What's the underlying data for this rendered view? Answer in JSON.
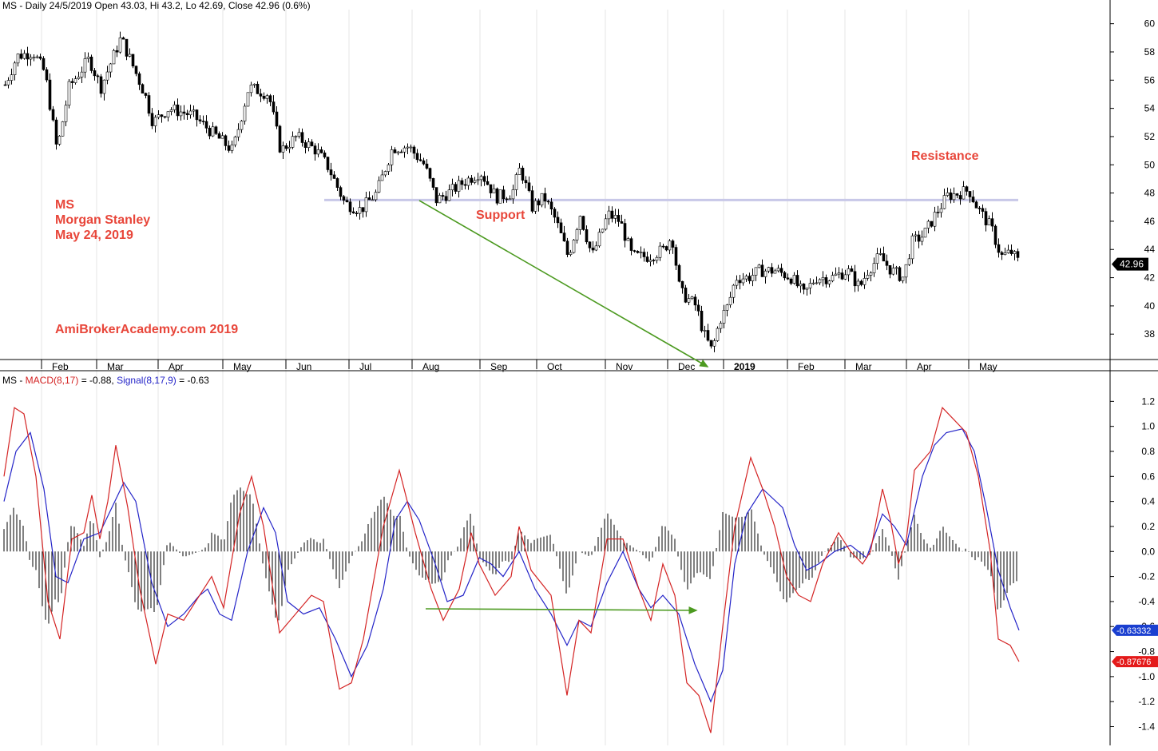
{
  "chart_data": [
    {
      "type": "candlestick",
      "title": "MS - Daily 24/5/2019 Open 43.03, Hi 43.2, Lo 42.69, Close 42.96 (0.6%)",
      "ylim": [
        36.2,
        61
      ],
      "yticks": [
        "38",
        "40",
        "42",
        "44",
        "46",
        "48",
        "50",
        "52",
        "54",
        "56",
        "58",
        "60"
      ],
      "xticks": [
        "Feb",
        "Mar",
        "Apr",
        "May",
        "Jun",
        "Jul",
        "Aug",
        "Sep",
        "Oct",
        "Nov",
        "Dec",
        "2019",
        "Feb",
        "Mar",
        "Apr",
        "May"
      ],
      "last_price_label": "42.96",
      "price_path": [
        [
          0,
          55
        ],
        [
          20,
          57.7
        ],
        [
          40,
          58
        ],
        [
          55,
          56.5
        ],
        [
          70,
          51
        ],
        [
          85,
          55.5
        ],
        [
          110,
          57.5
        ],
        [
          125,
          55.5
        ],
        [
          150,
          59
        ],
        [
          165,
          57
        ],
        [
          180,
          55
        ],
        [
          190,
          53
        ],
        [
          210,
          54
        ],
        [
          240,
          53.5
        ],
        [
          270,
          52
        ],
        [
          290,
          51
        ],
        [
          310,
          55.5
        ],
        [
          335,
          55
        ],
        [
          350,
          51
        ],
        [
          370,
          52
        ],
        [
          395,
          51
        ],
        [
          410,
          49.8
        ],
        [
          430,
          47.3
        ],
        [
          450,
          46.8
        ],
        [
          470,
          48
        ],
        [
          490,
          51.2
        ],
        [
          510,
          51.3
        ],
        [
          530,
          50
        ],
        [
          545,
          47.5
        ],
        [
          560,
          48
        ],
        [
          580,
          48.8
        ],
        [
          600,
          49.5
        ],
        [
          620,
          47.7
        ],
        [
          640,
          48
        ],
        [
          650,
          49.8
        ],
        [
          665,
          47
        ],
        [
          680,
          47.7
        ],
        [
          695,
          46
        ],
        [
          710,
          43.5
        ],
        [
          725,
          46.5
        ],
        [
          740,
          43.5
        ],
        [
          760,
          46.5
        ],
        [
          775,
          46
        ],
        [
          790,
          43.5
        ],
        [
          810,
          43.5
        ],
        [
          830,
          44
        ],
        [
          840,
          45
        ],
        [
          850,
          41
        ],
        [
          860,
          40.5
        ],
        [
          870,
          40
        ],
        [
          880,
          38
        ],
        [
          890,
          36.8
        ],
        [
          900,
          39
        ],
        [
          910,
          40
        ],
        [
          920,
          42
        ],
        [
          935,
          42
        ],
        [
          950,
          42.5
        ],
        [
          970,
          42.5
        ],
        [
          990,
          42
        ],
        [
          1005,
          40.8
        ],
        [
          1020,
          42
        ],
        [
          1040,
          42
        ],
        [
          1060,
          42.5
        ],
        [
          1075,
          41.3
        ],
        [
          1085,
          42.5
        ],
        [
          1100,
          43.5
        ],
        [
          1115,
          42.5
        ],
        [
          1130,
          42
        ],
        [
          1140,
          44.5
        ],
        [
          1155,
          45
        ],
        [
          1170,
          46.5
        ],
        [
          1185,
          47.8
        ],
        [
          1200,
          48
        ],
        [
          1212,
          48.2
        ],
        [
          1222,
          47
        ],
        [
          1240,
          45.5
        ],
        [
          1252,
          43.5
        ],
        [
          1265,
          43.8
        ],
        [
          1276,
          42.96
        ]
      ],
      "ma_line": [
        [
          406,
          47.5
        ],
        [
          1275,
          47.5
        ]
      ]
    },
    {
      "type": "line",
      "title": "MS - MACD(8,17) = -0.88, Signal(8,17,9) = -0.63",
      "legend": [
        "MS - ",
        "MACD(8,17)",
        " = -0.88, ",
        "Signal(8,17,9)",
        " = -0.63"
      ],
      "ylim": [
        -1.55,
        1.33
      ],
      "yticks": [
        "-1.4",
        "-1.2",
        "-1.0",
        "-0.8",
        "-0.6",
        "-0.4",
        "-0.2",
        "0.0",
        "0.2",
        "0.4",
        "0.6",
        "0.8",
        "1.0",
        "1.2"
      ],
      "series": [
        {
          "name": "MACD(8,17)",
          "color": "#d42424",
          "values": [
            [
              5,
              0.6
            ],
            [
              18,
              1.15
            ],
            [
              30,
              1.1
            ],
            [
              45,
              0.6
            ],
            [
              60,
              -0.4
            ],
            [
              75,
              -0.7
            ],
            [
              90,
              0.1
            ],
            [
              105,
              0.15
            ],
            [
              115,
              0.45
            ],
            [
              125,
              0.1
            ],
            [
              135,
              0.4
            ],
            [
              145,
              0.85
            ],
            [
              160,
              0.35
            ],
            [
              175,
              -0.3
            ],
            [
              195,
              -0.9
            ],
            [
              210,
              -0.5
            ],
            [
              230,
              -0.55
            ],
            [
              250,
              -0.35
            ],
            [
              265,
              -0.2
            ],
            [
              280,
              -0.45
            ],
            [
              300,
              0.3
            ],
            [
              315,
              0.6
            ],
            [
              330,
              0.2
            ],
            [
              350,
              -0.65
            ],
            [
              370,
              -0.5
            ],
            [
              390,
              -0.35
            ],
            [
              405,
              -0.4
            ],
            [
              425,
              -1.1
            ],
            [
              440,
              -1.05
            ],
            [
              455,
              -0.7
            ],
            [
              480,
              0.2
            ],
            [
              500,
              0.65
            ],
            [
              520,
              0.15
            ],
            [
              540,
              -0.3
            ],
            [
              555,
              -0.55
            ],
            [
              575,
              -0.3
            ],
            [
              590,
              0.15
            ],
            [
              600,
              -0.1
            ],
            [
              620,
              -0.35
            ],
            [
              640,
              -0.2
            ],
            [
              650,
              0.2
            ],
            [
              665,
              -0.15
            ],
            [
              690,
              -0.35
            ],
            [
              710,
              -1.15
            ],
            [
              725,
              -0.55
            ],
            [
              740,
              -0.65
            ],
            [
              760,
              0.1
            ],
            [
              780,
              0.1
            ],
            [
              800,
              -0.3
            ],
            [
              815,
              -0.55
            ],
            [
              830,
              -0.1
            ],
            [
              845,
              -0.35
            ],
            [
              860,
              -1.05
            ],
            [
              875,
              -1.15
            ],
            [
              890,
              -1.45
            ],
            [
              905,
              -0.6
            ],
            [
              920,
              0.2
            ],
            [
              940,
              0.75
            ],
            [
              955,
              0.5
            ],
            [
              970,
              0.2
            ],
            [
              985,
              -0.2
            ],
            [
              1000,
              -0.35
            ],
            [
              1015,
              -0.4
            ],
            [
              1030,
              -0.1
            ],
            [
              1050,
              0.15
            ],
            [
              1065,
              0.0
            ],
            [
              1080,
              -0.1
            ],
            [
              1090,
              0.0
            ],
            [
              1105,
              0.5
            ],
            [
              1115,
              0.25
            ],
            [
              1125,
              -0.1
            ],
            [
              1135,
              0.1
            ],
            [
              1145,
              0.65
            ],
            [
              1165,
              0.8
            ],
            [
              1180,
              1.15
            ],
            [
              1195,
              1.05
            ],
            [
              1210,
              0.95
            ],
            [
              1225,
              0.6
            ],
            [
              1240,
              0.0
            ],
            [
              1250,
              -0.7
            ],
            [
              1265,
              -0.75
            ],
            [
              1276,
              -0.88
            ]
          ]
        },
        {
          "name": "Signal(8,17,9)",
          "color": "#2424c8",
          "values": [
            [
              5,
              0.4
            ],
            [
              20,
              0.8
            ],
            [
              38,
              0.95
            ],
            [
              55,
              0.5
            ],
            [
              70,
              -0.2
            ],
            [
              85,
              -0.25
            ],
            [
              105,
              0.1
            ],
            [
              125,
              0.15
            ],
            [
              140,
              0.35
            ],
            [
              155,
              0.55
            ],
            [
              170,
              0.4
            ],
            [
              190,
              -0.25
            ],
            [
              210,
              -0.6
            ],
            [
              230,
              -0.5
            ],
            [
              250,
              -0.35
            ],
            [
              260,
              -0.3
            ],
            [
              275,
              -0.5
            ],
            [
              290,
              -0.55
            ],
            [
              310,
              0.0
            ],
            [
              330,
              0.35
            ],
            [
              345,
              0.15
            ],
            [
              360,
              -0.4
            ],
            [
              380,
              -0.5
            ],
            [
              400,
              -0.45
            ],
            [
              420,
              -0.7
            ],
            [
              440,
              -1.0
            ],
            [
              460,
              -0.75
            ],
            [
              480,
              -0.3
            ],
            [
              495,
              0.25
            ],
            [
              510,
              0.4
            ],
            [
              525,
              0.25
            ],
            [
              545,
              -0.1
            ],
            [
              560,
              -0.4
            ],
            [
              580,
              -0.35
            ],
            [
              600,
              -0.05
            ],
            [
              615,
              -0.1
            ],
            [
              630,
              -0.2
            ],
            [
              650,
              0.0
            ],
            [
              670,
              -0.3
            ],
            [
              690,
              -0.5
            ],
            [
              710,
              -0.75
            ],
            [
              725,
              -0.55
            ],
            [
              740,
              -0.6
            ],
            [
              760,
              -0.25
            ],
            [
              780,
              0.0
            ],
            [
              800,
              -0.3
            ],
            [
              815,
              -0.45
            ],
            [
              830,
              -0.35
            ],
            [
              850,
              -0.5
            ],
            [
              870,
              -0.9
            ],
            [
              890,
              -1.2
            ],
            [
              905,
              -0.95
            ],
            [
              920,
              -0.1
            ],
            [
              935,
              0.3
            ],
            [
              955,
              0.5
            ],
            [
              980,
              0.35
            ],
            [
              995,
              0.05
            ],
            [
              1010,
              -0.15
            ],
            [
              1025,
              -0.1
            ],
            [
              1045,
              0.0
            ],
            [
              1065,
              0.05
            ],
            [
              1085,
              -0.05
            ],
            [
              1105,
              0.3
            ],
            [
              1120,
              0.2
            ],
            [
              1135,
              0.05
            ],
            [
              1155,
              0.6
            ],
            [
              1170,
              0.85
            ],
            [
              1185,
              0.95
            ],
            [
              1205,
              0.98
            ],
            [
              1220,
              0.8
            ],
            [
              1235,
              0.35
            ],
            [
              1250,
              -0.15
            ],
            [
              1265,
              -0.45
            ],
            [
              1276,
              -0.63
            ]
          ]
        }
      ],
      "histogram_color": "#000000",
      "value_tags": [
        {
          "label": "-0.63332",
          "bg": "#1a3fd0",
          "y": -0.63
        },
        {
          "label": "-0.87676",
          "bg": "#e41a1a",
          "y": -0.88
        }
      ]
    }
  ],
  "annotations": {
    "ticker": "MS",
    "company": "Morgan Stanley",
    "date": "May 24, 2019",
    "website": "AmiBrokerAcademy.com  2019",
    "support": "Support",
    "resistance": "Resistance"
  },
  "colors": {
    "annotation": "#e8463a",
    "arrow": "#4c9a20",
    "support_line": "#c8c8e8",
    "price": "#000000"
  }
}
